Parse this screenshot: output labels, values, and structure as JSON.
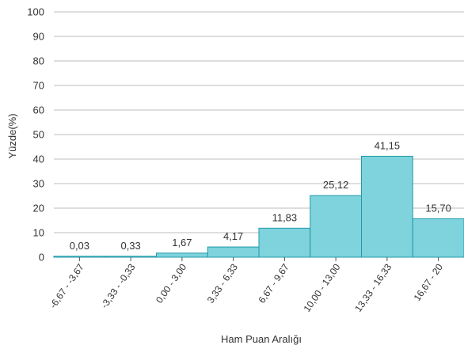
{
  "chart_data": {
    "type": "bar",
    "xlabel": "Ham Puan Aralığı",
    "ylabel": "Yüzde(%)",
    "ylim": [
      0,
      100
    ],
    "yticks": [
      0,
      10,
      20,
      30,
      40,
      50,
      60,
      70,
      80,
      90,
      100
    ],
    "grid": true,
    "categories": [
      "-6,67 - -3,67",
      "-3,33 - -0,33",
      "0,00 - 3,00",
      "3,33 - 6,33",
      "6,67 - 9,67",
      "10,00 - 13,00",
      "13,33 - 16,33",
      "16,67 - 20"
    ],
    "values": [
      0.03,
      0.33,
      1.67,
      4.17,
      11.83,
      25.12,
      41.15,
      15.7
    ],
    "value_labels": [
      "0,03",
      "0,33",
      "1,67",
      "4,17",
      "11,83",
      "25,12",
      "41,15",
      "15,70"
    ],
    "colors": {
      "bar_fill": "#7fd3dd",
      "bar_edge": "#1f9aaa",
      "grid": "#bdbdbd"
    }
  }
}
